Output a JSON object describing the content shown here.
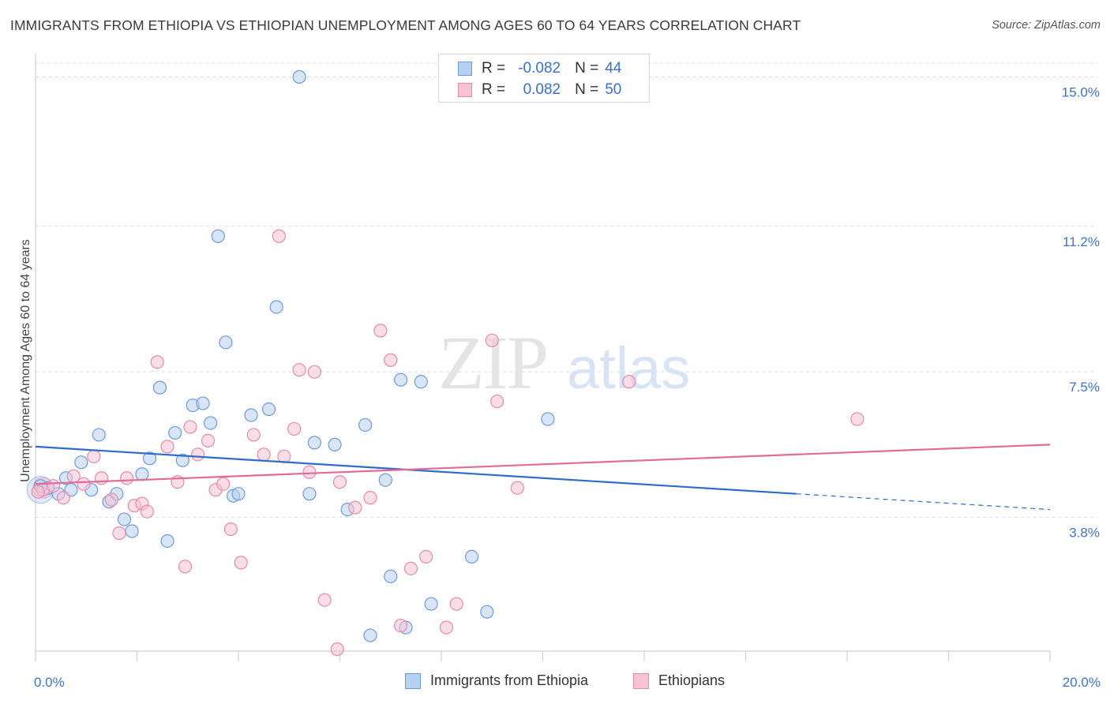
{
  "header": {
    "title": "IMMIGRANTS FROM ETHIOPIA VS ETHIOPIAN UNEMPLOYMENT AMONG AGES 60 TO 64 YEARS CORRELATION CHART",
    "source": "Source: ZipAtlas.com"
  },
  "watermark": {
    "zip": "ZIP",
    "atlas": "atlas"
  },
  "stats_legend": {
    "rows": [
      {
        "r_label": "R =",
        "r_value": "-0.082",
        "n_label": "N =",
        "n_value": "44"
      },
      {
        "r_label": "R =",
        "r_value": "0.082",
        "n_label": "N =",
        "n_value": "50"
      }
    ]
  },
  "bottom_legend": {
    "series_a": "Immigrants from Ethiopia",
    "series_b": "Ethiopians"
  },
  "colors": {
    "blue_fill": "#b7cff1",
    "blue_stroke": "#6f9ad9",
    "blue_line": "#2f6cc7",
    "pink_fill": "#f6c2d4",
    "pink_stroke": "#e58aab",
    "pink_line": "#e06c98",
    "tick_text": "#3f73c4",
    "grid": "#dddddd"
  },
  "chart_data": {
    "type": "scatter",
    "title": "IMMIGRANTS FROM ETHIOPIA VS ETHIOPIAN UNEMPLOYMENT AMONG AGES 60 TO 64 YEARS CORRELATION CHART",
    "xlabel": "",
    "ylabel": "Unemployment Among Ages 60 to 64 years",
    "xlim": [
      0,
      20
    ],
    "ylim": [
      0.4,
      15.35
    ],
    "x_tick_labels": [
      {
        "value": 0,
        "label": "0.0%"
      },
      {
        "value": 20,
        "label": "20.0%"
      }
    ],
    "y_tick_labels": [
      {
        "value": 3.8,
        "label": "3.8%"
      },
      {
        "value": 7.5,
        "label": "7.5%"
      },
      {
        "value": 11.2,
        "label": "11.2%"
      },
      {
        "value": 15.0,
        "label": "15.0%"
      }
    ],
    "x_minor_ticks": [
      0,
      2,
      4,
      6,
      8,
      10,
      12,
      14,
      16,
      18,
      20
    ],
    "series": [
      {
        "name": "Immigrants from Ethiopia",
        "r": -0.082,
        "n": 44,
        "trend": {
          "x0": 0,
          "y0": 5.6,
          "x1": 15,
          "y1": 4.4,
          "dashed_to_x": 20,
          "dashed_to_y": 4.0
        },
        "points": [
          [
            0.1,
            4.6
          ],
          [
            0.25,
            4.55
          ],
          [
            0.45,
            4.4
          ],
          [
            0.6,
            4.8
          ],
          [
            0.7,
            4.5
          ],
          [
            0.9,
            5.2
          ],
          [
            1.1,
            4.5
          ],
          [
            1.25,
            5.9
          ],
          [
            1.45,
            4.2
          ],
          [
            1.6,
            4.4
          ],
          [
            1.75,
            3.75
          ],
          [
            1.9,
            3.45
          ],
          [
            2.1,
            4.9
          ],
          [
            2.25,
            5.3
          ],
          [
            2.45,
            7.1
          ],
          [
            2.6,
            3.2
          ],
          [
            2.75,
            5.95
          ],
          [
            2.9,
            5.25
          ],
          [
            3.1,
            6.65
          ],
          [
            3.3,
            6.7
          ],
          [
            3.45,
            6.2
          ],
          [
            3.6,
            10.95
          ],
          [
            3.75,
            8.25
          ],
          [
            3.9,
            4.35
          ],
          [
            4.0,
            4.4
          ],
          [
            4.25,
            6.4
          ],
          [
            4.6,
            6.55
          ],
          [
            4.75,
            9.15
          ],
          [
            5.2,
            15.0
          ],
          [
            5.4,
            4.4
          ],
          [
            5.5,
            5.7
          ],
          [
            5.9,
            5.65
          ],
          [
            6.15,
            4.0
          ],
          [
            6.5,
            6.15
          ],
          [
            6.6,
            0.8
          ],
          [
            6.9,
            4.75
          ],
          [
            7.0,
            2.3
          ],
          [
            7.2,
            7.3
          ],
          [
            7.3,
            1.0
          ],
          [
            7.6,
            7.25
          ],
          [
            7.8,
            1.6
          ],
          [
            8.6,
            2.8
          ],
          [
            8.9,
            1.4
          ],
          [
            10.1,
            6.3
          ]
        ]
      },
      {
        "name": "Ethiopians",
        "r": 0.082,
        "n": 50,
        "trend": {
          "x0": 0,
          "y0": 4.65,
          "x1": 20,
          "y1": 5.65
        },
        "points": [
          [
            0.15,
            4.5
          ],
          [
            0.35,
            4.6
          ],
          [
            0.55,
            4.3
          ],
          [
            0.75,
            4.85
          ],
          [
            0.95,
            4.65
          ],
          [
            1.15,
            5.35
          ],
          [
            1.3,
            4.8
          ],
          [
            1.5,
            4.25
          ],
          [
            1.65,
            3.4
          ],
          [
            1.8,
            4.8
          ],
          [
            1.95,
            4.1
          ],
          [
            2.1,
            4.15
          ],
          [
            2.2,
            3.95
          ],
          [
            2.4,
            7.75
          ],
          [
            2.6,
            5.6
          ],
          [
            2.8,
            4.7
          ],
          [
            2.95,
            2.55
          ],
          [
            3.05,
            6.1
          ],
          [
            3.2,
            5.4
          ],
          [
            3.4,
            5.75
          ],
          [
            3.55,
            4.5
          ],
          [
            3.7,
            4.65
          ],
          [
            3.85,
            3.5
          ],
          [
            4.05,
            2.65
          ],
          [
            4.3,
            5.9
          ],
          [
            4.5,
            5.4
          ],
          [
            4.8,
            10.95
          ],
          [
            4.9,
            5.35
          ],
          [
            5.1,
            6.05
          ],
          [
            5.2,
            7.55
          ],
          [
            5.4,
            4.95
          ],
          [
            5.5,
            7.5
          ],
          [
            5.7,
            1.7
          ],
          [
            6.0,
            4.7
          ],
          [
            5.95,
            0.45
          ],
          [
            6.3,
            4.05
          ],
          [
            6.6,
            4.3
          ],
          [
            6.8,
            8.55
          ],
          [
            7.0,
            7.8
          ],
          [
            7.2,
            1.05
          ],
          [
            7.4,
            2.5
          ],
          [
            7.7,
            2.8
          ],
          [
            8.1,
            1.0
          ],
          [
            8.3,
            1.6
          ],
          [
            9.0,
            8.3
          ],
          [
            9.1,
            6.75
          ],
          [
            9.5,
            4.55
          ],
          [
            11.7,
            7.25
          ],
          [
            16.2,
            6.3
          ],
          [
            0.05,
            4.45
          ]
        ]
      }
    ]
  }
}
